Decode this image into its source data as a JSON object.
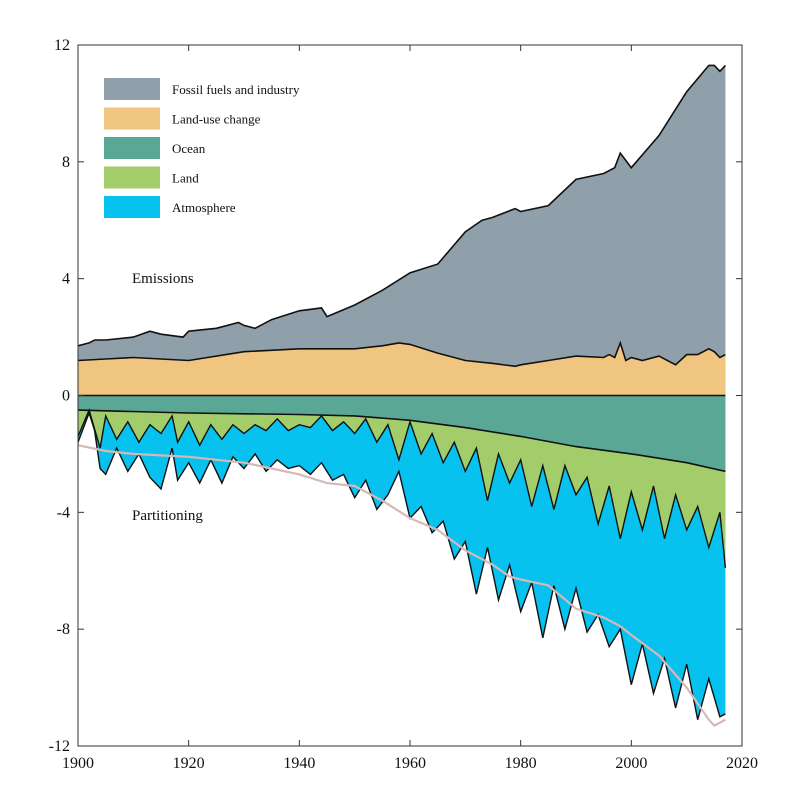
{
  "chart_data": {
    "type": "area",
    "title": "",
    "xlabel": "",
    "ylabel": "",
    "xlim": [
      1900,
      2020
    ],
    "ylim": [
      -12,
      12
    ],
    "x_ticks": [
      "1900",
      "1920",
      "1940",
      "1960",
      "1980",
      "2000",
      "2020"
    ],
    "y_ticks": [
      "12",
      "8",
      "4",
      "0",
      "-4",
      "-8",
      "-12"
    ],
    "y_tick_values": [
      12,
      8,
      4,
      0,
      -4,
      -8,
      -12
    ],
    "x_tick_values": [
      1900,
      1920,
      1940,
      1960,
      1980,
      2000,
      2020
    ],
    "legend": [
      {
        "label": "Fossil fuels and industry",
        "color": "#8fa0ab"
      },
      {
        "label": "Land-use change",
        "color": "#efc57f"
      },
      {
        "label": "Ocean",
        "color": "#5aa796"
      },
      {
        "label": "Land",
        "color": "#a3cd6a"
      },
      {
        "label": "Atmosphere",
        "color": "#07c1ee"
      }
    ],
    "legend_position": "top-left",
    "annotations": [
      "Emissions",
      "Partitioning"
    ],
    "colors": {
      "fossil": "#8fa0ab",
      "landuse": "#efc57f",
      "ocean": "#5aa796",
      "land": "#a3cd6a",
      "atmosphere": "#07c1ee",
      "budget_imbalance_line": "#d7b8b8"
    },
    "series": {
      "emissions_total_top": {
        "x": [
          1900,
          1902,
          1903,
          1905,
          1910,
          1913,
          1915,
          1919,
          1920,
          1925,
          1929,
          1930,
          1932,
          1935,
          1940,
          1944,
          1945,
          1950,
          1955,
          1960,
          1965,
          1970,
          1973,
          1975,
          1979,
          1980,
          1985,
          1990,
          1995,
          1997,
          1998,
          2000,
          2005,
          2010,
          2014,
          2015,
          2016,
          2017
        ],
        "y": [
          1.7,
          1.8,
          1.9,
          1.9,
          2.0,
          2.2,
          2.1,
          2.0,
          2.2,
          2.3,
          2.5,
          2.4,
          2.3,
          2.6,
          2.9,
          3.0,
          2.7,
          3.1,
          3.6,
          4.2,
          4.5,
          5.6,
          6.0,
          6.1,
          6.4,
          6.3,
          6.5,
          7.4,
          7.6,
          7.8,
          8.3,
          7.8,
          8.9,
          10.4,
          11.3,
          11.3,
          11.1,
          11.3
        ]
      },
      "landuse_top": {
        "x": [
          1900,
          1905,
          1910,
          1920,
          1930,
          1940,
          1950,
          1955,
          1958,
          1960,
          1965,
          1970,
          1975,
          1979,
          1980,
          1985,
          1990,
          1995,
          1996,
          1997,
          1998,
          1999,
          2000,
          2002,
          2005,
          2008,
          2010,
          2012,
          2014,
          2015,
          2016,
          2017
        ],
        "y": [
          1.2,
          1.25,
          1.3,
          1.2,
          1.5,
          1.6,
          1.6,
          1.7,
          1.8,
          1.75,
          1.45,
          1.2,
          1.1,
          1.0,
          1.05,
          1.2,
          1.35,
          1.3,
          1.4,
          1.3,
          1.8,
          1.2,
          1.3,
          1.2,
          1.35,
          1.05,
          1.4,
          1.4,
          1.6,
          1.5,
          1.3,
          1.4
        ]
      },
      "ocean_sink": {
        "x": [
          1900,
          1920,
          1940,
          1950,
          1960,
          1970,
          1980,
          1990,
          2000,
          2010,
          2017
        ],
        "y": [
          -0.5,
          -0.6,
          -0.65,
          -0.7,
          -0.85,
          -1.1,
          -1.4,
          -1.75,
          -2.0,
          -2.3,
          -2.6
        ]
      },
      "land_sink_bottom": {
        "x": [
          1900,
          1902,
          1904,
          1905,
          1907,
          1909,
          1911,
          1913,
          1915,
          1917,
          1918,
          1920,
          1922,
          1924,
          1926,
          1928,
          1930,
          1932,
          1934,
          1936,
          1938,
          1940,
          1942,
          1944,
          1946,
          1948,
          1950,
          1952,
          1954,
          1956,
          1958,
          1960,
          1962,
          1964,
          1966,
          1968,
          1970,
          1972,
          1974,
          1976,
          1978,
          1980,
          1982,
          1984,
          1986,
          1988,
          1990,
          1992,
          1994,
          1996,
          1998,
          2000,
          2002,
          2004,
          2006,
          2008,
          2010,
          2012,
          2014,
          2016,
          2017
        ],
        "y": [
          -1.4,
          -0.5,
          -1.8,
          -0.7,
          -1.5,
          -0.9,
          -1.6,
          -1.0,
          -1.3,
          -0.7,
          -1.6,
          -0.9,
          -1.7,
          -1.0,
          -1.5,
          -1.0,
          -1.3,
          -1.0,
          -1.2,
          -0.8,
          -1.2,
          -1.0,
          -1.1,
          -0.7,
          -1.2,
          -0.9,
          -1.3,
          -0.8,
          -1.6,
          -1.0,
          -2.2,
          -0.9,
          -2.0,
          -1.3,
          -2.3,
          -1.6,
          -2.6,
          -1.8,
          -3.6,
          -2.0,
          -3.0,
          -2.2,
          -3.8,
          -2.4,
          -3.9,
          -2.4,
          -3.4,
          -2.8,
          -4.4,
          -3.1,
          -4.9,
          -3.3,
          -4.6,
          -3.1,
          -4.9,
          -3.4,
          -4.6,
          -3.8,
          -5.2,
          -4.0,
          -5.9
        ]
      },
      "atmosphere_bottom": {
        "x": [
          1900,
          1902,
          1903,
          1904,
          1905,
          1907,
          1909,
          1911,
          1913,
          1915,
          1917,
          1918,
          1920,
          1922,
          1924,
          1926,
          1928,
          1930,
          1932,
          1934,
          1936,
          1938,
          1940,
          1942,
          1944,
          1946,
          1948,
          1950,
          1952,
          1954,
          1956,
          1958,
          1960,
          1962,
          1964,
          1966,
          1968,
          1970,
          1972,
          1974,
          1976,
          1978,
          1980,
          1982,
          1984,
          1986,
          1988,
          1990,
          1992,
          1994,
          1996,
          1998,
          2000,
          2002,
          2004,
          2006,
          2008,
          2010,
          2012,
          2014,
          2016,
          2017
        ],
        "y": [
          -1.6,
          -0.6,
          -1.2,
          -2.5,
          -2.7,
          -1.8,
          -2.6,
          -2.0,
          -2.8,
          -3.2,
          -1.8,
          -2.9,
          -2.3,
          -3.0,
          -2.2,
          -3.0,
          -2.1,
          -2.5,
          -2.0,
          -2.6,
          -2.2,
          -2.5,
          -2.4,
          -2.7,
          -2.3,
          -2.9,
          -2.7,
          -3.5,
          -2.9,
          -3.9,
          -3.4,
          -2.6,
          -4.2,
          -3.8,
          -4.7,
          -4.3,
          -5.6,
          -5.0,
          -6.8,
          -5.2,
          -7.0,
          -5.8,
          -7.4,
          -6.4,
          -8.3,
          -6.5,
          -8.0,
          -6.6,
          -8.1,
          -7.5,
          -8.6,
          -8.0,
          -9.9,
          -8.5,
          -10.2,
          -9.0,
          -10.7,
          -9.2,
          -11.1,
          -9.7,
          -11.0,
          -10.9
        ]
      },
      "budget_line": {
        "x": [
          1900,
          1905,
          1910,
          1915,
          1920,
          1925,
          1930,
          1935,
          1940,
          1945,
          1950,
          1955,
          1960,
          1965,
          1970,
          1975,
          1978,
          1980,
          1985,
          1990,
          1995,
          1998,
          2000,
          2005,
          2010,
          2014,
          2015,
          2016,
          2017
        ],
        "y": [
          -1.7,
          -1.9,
          -2.0,
          -2.05,
          -2.1,
          -2.2,
          -2.3,
          -2.5,
          -2.7,
          -3.0,
          -3.1,
          -3.6,
          -4.2,
          -4.6,
          -5.3,
          -5.8,
          -6.2,
          -6.3,
          -6.5,
          -7.3,
          -7.6,
          -7.9,
          -8.2,
          -8.9,
          -10.0,
          -11.1,
          -11.3,
          -11.2,
          -11.1
        ]
      }
    }
  }
}
